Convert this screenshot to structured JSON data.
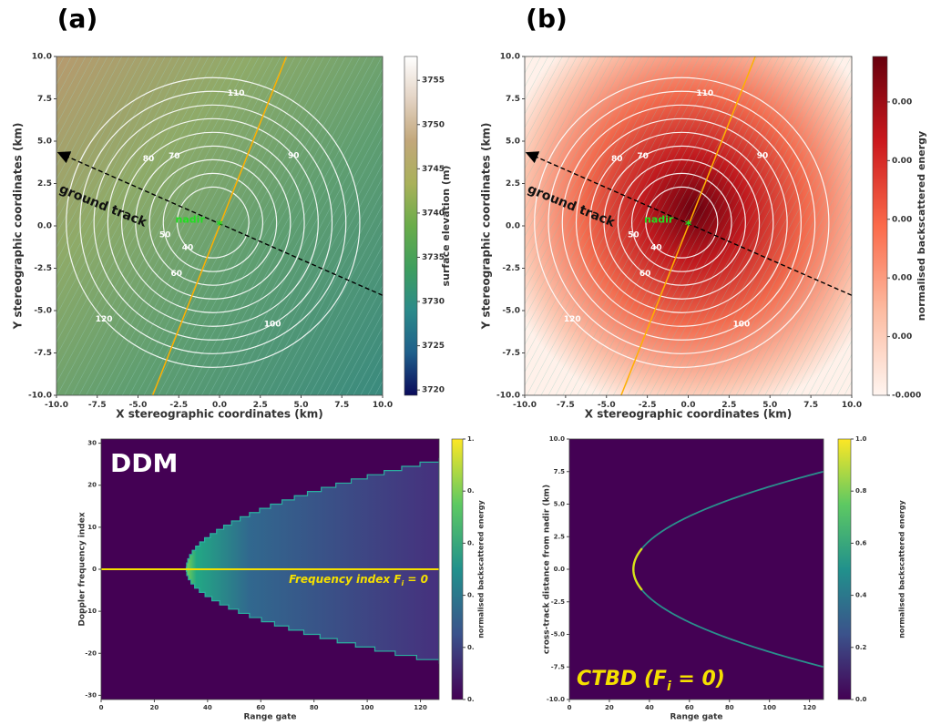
{
  "chart_data": [
    {
      "type": "map",
      "label": "(a)",
      "xlabel": "X stereographic coordinates (km)",
      "ylabel": "Y stereographic coordinates (km)",
      "xlim": [
        -10,
        10
      ],
      "xticks": [
        {
          "value": -10,
          "label": "-10.0"
        },
        -7.5,
        {
          "value": -5,
          "label": "-5.0"
        },
        -2.5,
        {
          "value": 0,
          "label": "0.0"
        },
        2.5,
        {
          "value": 5,
          "label": "5.0"
        },
        7.5,
        {
          "value": 10,
          "label": "10.0"
        }
      ],
      "ylim": [
        -10,
        10
      ],
      "yticks": [
        {
          "value": -10,
          "label": "-10.0"
        },
        -7.5,
        {
          "value": -5,
          "label": "-5.0"
        },
        -2.5,
        {
          "value": 0,
          "label": "0.0"
        },
        2.5,
        {
          "value": 5,
          "label": "5.0"
        },
        7.5,
        {
          "value": 10,
          "label": "10.0"
        }
      ],
      "colorbar": {
        "label": "surface elevation (m)",
        "lim": [
          3719.4,
          3757.7
        ],
        "ticks": [
          3720,
          3725,
          3730,
          3735,
          3740,
          3745,
          3750,
          3755
        ],
        "cmap": [
          "#0a0a5a",
          "#1f5f8b",
          "#2b8a8a",
          "#3e9e5e",
          "#6aac4a",
          "#a9b15a",
          "#c2a77a",
          "#e3d3c4",
          "#ffffff"
        ]
      },
      "contour_levels": [
        40,
        50,
        60,
        70,
        80,
        90,
        100,
        110,
        120
      ],
      "track_label": "ground track",
      "nadir_label": "nadir"
    },
    {
      "type": "map",
      "label": "(b)",
      "xlabel": "X stereographic coordinates (km)",
      "ylabel": "Y stereographic coordinates (km)",
      "xlim": [
        -10,
        10
      ],
      "xticks": [
        {
          "value": -10,
          "label": "-10.0"
        },
        -7.5,
        {
          "value": -5,
          "label": "-5.0"
        },
        -2.5,
        {
          "value": 0,
          "label": "0.0"
        },
        2.5,
        {
          "value": 5,
          "label": "5.0"
        },
        7.5,
        {
          "value": 10,
          "label": "10.0"
        }
      ],
      "ylim": [
        -10,
        10
      ],
      "yticks": [
        {
          "value": -10,
          "label": "-10.0"
        },
        -7.5,
        {
          "value": -5,
          "label": "-5.0"
        },
        -2.5,
        {
          "value": 0,
          "label": "0.0"
        },
        2.5,
        {
          "value": 5,
          "label": "5.0"
        },
        7.5,
        {
          "value": 10,
          "label": "10.0"
        }
      ],
      "colorbar": {
        "label": "normalised backscattered energy",
        "lim": [
          0,
          0.00462
        ],
        "ticks": [
          {
            "value": 0,
            "label": "-0.000"
          },
          {
            "value": 0.0008,
            "label": "0.00"
          },
          {
            "value": 0.0016,
            "label": "0.00"
          },
          {
            "value": 0.0024,
            "label": "0.00"
          },
          {
            "value": 0.0032,
            "label": "0.00"
          },
          {
            "value": 0.004,
            "label": "0.00"
          }
        ],
        "cmap": [
          "#fff5f0",
          "#fcbba1",
          "#fb6a4a",
          "#cb181d",
          "#67000d"
        ]
      },
      "contour_levels": [
        40,
        50,
        60,
        70,
        80,
        90,
        100,
        110,
        120
      ],
      "track_label": "ground track",
      "nadir_label": "nadir"
    },
    {
      "type": "ddm",
      "annotation": "DDM",
      "line_label": {
        "text": "Frequency index F",
        "subscript": "i",
        "suffix": " = 0"
      },
      "xlabel": "Range gate",
      "ylabel": "Doppler frequency index",
      "xlim": [
        0,
        127
      ],
      "xticks": [
        0,
        20,
        40,
        60,
        80,
        100,
        120
      ],
      "ylim": [
        -31,
        31
      ],
      "yticks": [
        -30,
        -20,
        -10,
        0,
        10,
        20,
        30
      ],
      "colorbar": {
        "label": "normalised backscattered energy",
        "lim": [
          0,
          1
        ],
        "ticks": [
          {
            "value": 0,
            "label": "0."
          },
          {
            "value": 0.2,
            "label": "0."
          },
          {
            "value": 0.4,
            "label": "0."
          },
          {
            "value": 0.6,
            "label": "0."
          },
          {
            "value": 0.8,
            "label": "0."
          },
          {
            "value": 1,
            "label": "1."
          }
        ],
        "cmap": [
          "#440154",
          "#3b528b",
          "#21918c",
          "#5ec962",
          "#fde725"
        ]
      }
    },
    {
      "type": "ctbd",
      "line_label": {
        "text": "CTBD (F",
        "subscript": "i",
        "suffix": " = 0)"
      },
      "xlabel": "Range gate",
      "ylabel": "cross-track distance from nadir (km)",
      "xlim": [
        0,
        127
      ],
      "xticks": [
        0,
        20,
        40,
        60,
        80,
        100,
        120
      ],
      "ylim": [
        -10,
        10
      ],
      "yticks": [
        {
          "value": -10,
          "label": "-10.0"
        },
        -7.5,
        {
          "value": -5,
          "label": "-5.0"
        },
        -2.5,
        {
          "value": 0,
          "label": "0.0"
        },
        2.5,
        {
          "value": 5,
          "label": "5.0"
        },
        7.5,
        {
          "value": 10,
          "label": "10.0"
        }
      ],
      "colorbar": {
        "label": "normalised backscattered energy",
        "lim": [
          0,
          1
        ],
        "ticks": [
          {
            "value": 0,
            "label": "0.0"
          },
          0.2,
          0.4,
          0.6,
          0.8,
          {
            "value": 1,
            "label": "1.0"
          }
        ],
        "cmap": [
          "#440154",
          "#3b528b",
          "#21918c",
          "#5ec962",
          "#fde725"
        ]
      }
    }
  ]
}
